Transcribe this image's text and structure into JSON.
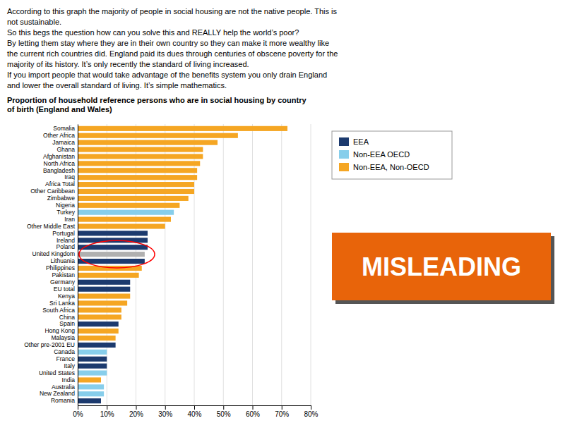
{
  "chart_data": {
    "type": "bar",
    "orientation": "horizontal",
    "title": "Proportion of household reference persons who are in social housing by country\nof birth (England and Wales)",
    "subtitle": [
      "According to this graph the majority of people in social housing are not the native people. This is",
      "not sustainable.",
      "So this begs the question how can you solve this and REALLY help the world’s poor?",
      "By letting them stay where they are in their own country so they can make it more wealthy like",
      "the current rich countries did. England paid its dues through centuries of obscene poverty for the",
      "majority of its history. It’s only recently the standard of living increased.",
      "If you import people that would take advantage of the benefits system you only drain England",
      "and lower the overall standard of living. It’s simple mathematics."
    ],
    "annotations": [
      {
        "text": "MISLEADING",
        "color": "#E8640A"
      }
    ],
    "categories": [
      "Somalia",
      "Other Africa",
      "Jamaica",
      "Ghana",
      "Afghanistan",
      "North Africa",
      "Bangladesh",
      "Iraq",
      "Africa Total",
      "Other Caribbean",
      "Zimbabwe",
      "Nigeria",
      "Turkey",
      "Iran",
      "Other Middle East",
      "Portugal",
      "Ireland",
      "Poland",
      "United Kingdom",
      "Lithuania",
      "Philippines",
      "Pakistan",
      "Germany",
      "EU total",
      "Kenya",
      "Sri Lanka",
      "South Africa",
      "China",
      "Spain",
      "Hong Kong",
      "Malaysia",
      "Other pre-2001 EU",
      "Canada",
      "France",
      "Italy",
      "United States",
      "India",
      "Australia",
      "New Zealand",
      "Romania"
    ],
    "values": [
      72,
      55,
      48,
      43,
      43,
      42,
      41,
      41,
      40,
      40,
      38,
      35,
      33,
      32,
      30,
      24,
      24,
      24,
      23,
      23,
      22,
      21,
      18,
      18,
      18,
      17,
      15,
      15,
      14,
      14,
      13,
      13,
      10,
      10,
      10,
      10,
      8,
      9,
      9,
      8
    ],
    "colors": [
      "#F5A623",
      "#F5A623",
      "#F5A623",
      "#F5A623",
      "#F5A623",
      "#F5A623",
      "#F5A623",
      "#F5A623",
      "#F5A623",
      "#F5A623",
      "#F5A623",
      "#F5A623",
      "#87CEEB",
      "#F5A623",
      "#F5A623",
      "#1C3A6E",
      "#1C3A6E",
      "#1C3A6E",
      "#B0B0B0",
      "#1C3A6E",
      "#F5A623",
      "#F5A623",
      "#1C3A6E",
      "#1C3A6E",
      "#F5A623",
      "#F5A623",
      "#F5A623",
      "#F5A623",
      "#1C3A6E",
      "#F5A623",
      "#F5A623",
      "#1C3A6E",
      "#87CEEB",
      "#1C3A6E",
      "#1C3A6E",
      "#87CEEB",
      "#F5A623",
      "#87CEEB",
      "#87CEEB",
      "#1C3A6E"
    ],
    "legend_entries": [
      {
        "name": "EEA",
        "color": "#1C3A6E"
      },
      {
        "name": "Non-EEA OECD",
        "color": "#87CEEB"
      },
      {
        "name": "Non-EEA, Non-OECD",
        "color": "#F5A623"
      }
    ],
    "highlight": [
      "Poland",
      "United Kingdom",
      "Lithuania"
    ],
    "xlim": [
      0,
      80
    ],
    "xticks": [
      {
        "value": 0,
        "label": "0%"
      },
      {
        "value": 10,
        "label": "10%"
      },
      {
        "value": 20,
        "label": "20%"
      },
      {
        "value": 30,
        "label": "30%"
      },
      {
        "value": 40,
        "label": "40%"
      },
      {
        "value": 50,
        "label": "50%"
      },
      {
        "value": 60,
        "label": "60%"
      },
      {
        "value": 70,
        "label": "70%"
      },
      {
        "value": 80,
        "label": "80%"
      }
    ],
    "grid": true
  }
}
